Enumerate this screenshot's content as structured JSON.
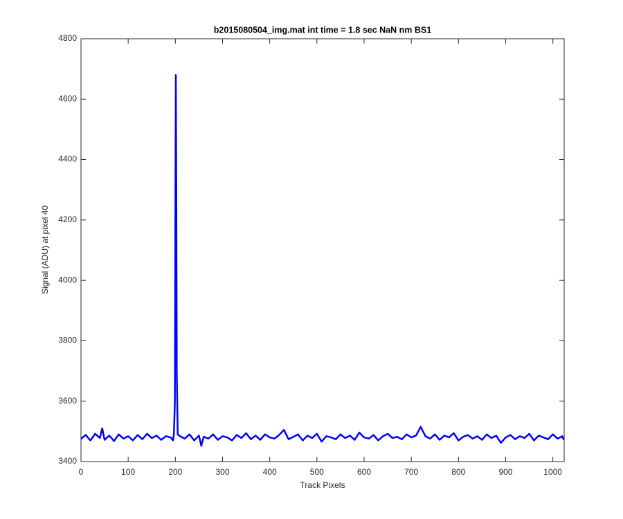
{
  "chart_data": {
    "type": "line",
    "title": "b2015080504_img.mat int time = 1.8 sec  NaN nm BS1",
    "x_label": "Track Pixels",
    "y_label": "Signal (ADU) at pixel 40",
    "xlim": [
      0,
      1024
    ],
    "ylim": [
      3400,
      4800
    ],
    "xticks": [
      0,
      100,
      200,
      300,
      400,
      500,
      600,
      700,
      800,
      900,
      1000
    ],
    "yticks": [
      3400,
      3600,
      3800,
      4000,
      4200,
      4400,
      4600,
      4800
    ],
    "grid": false,
    "series": [
      {
        "name": "signal",
        "color": "#0000ff",
        "x": [
          0,
          10,
          20,
          30,
          40,
          45,
          50,
          60,
          70,
          80,
          90,
          100,
          110,
          120,
          130,
          140,
          150,
          160,
          170,
          180,
          190,
          195,
          197,
          199,
          200,
          201,
          202,
          203,
          205,
          210,
          220,
          230,
          240,
          250,
          255,
          260,
          270,
          280,
          290,
          300,
          310,
          320,
          330,
          340,
          350,
          360,
          370,
          380,
          390,
          400,
          410,
          420,
          430,
          440,
          450,
          460,
          470,
          480,
          490,
          500,
          510,
          520,
          530,
          540,
          550,
          560,
          570,
          580,
          590,
          600,
          610,
          620,
          630,
          640,
          650,
          660,
          670,
          680,
          690,
          700,
          710,
          720,
          730,
          740,
          750,
          760,
          770,
          780,
          790,
          800,
          810,
          820,
          830,
          840,
          850,
          860,
          870,
          880,
          890,
          900,
          910,
          920,
          930,
          940,
          950,
          960,
          970,
          980,
          990,
          1000,
          1010,
          1020,
          1023
        ],
        "values": [
          3475,
          3488,
          3470,
          3492,
          3478,
          3510,
          3472,
          3486,
          3468,
          3490,
          3476,
          3484,
          3470,
          3488,
          3474,
          3492,
          3478,
          3486,
          3472,
          3484,
          3480,
          3470,
          3492,
          3600,
          4200,
          4680,
          4300,
          3700,
          3490,
          3484,
          3476,
          3490,
          3470,
          3486,
          3452,
          3482,
          3476,
          3490,
          3472,
          3484,
          3480,
          3470,
          3488,
          3478,
          3494,
          3474,
          3486,
          3472,
          3490,
          3480,
          3476,
          3488,
          3505,
          3474,
          3482,
          3490,
          3470,
          3486,
          3478,
          3492,
          3466,
          3484,
          3480,
          3474,
          3490,
          3478,
          3486,
          3472,
          3496,
          3480,
          3476,
          3488,
          3470,
          3484,
          3492,
          3478,
          3482,
          3474,
          3490,
          3480,
          3486,
          3515,
          3484,
          3476,
          3490,
          3472,
          3486,
          3480,
          3494,
          3470,
          3482,
          3488,
          3476,
          3484,
          3472,
          3490,
          3478,
          3486,
          3462,
          3480,
          3488,
          3474,
          3484,
          3478,
          3492,
          3470,
          3486,
          3480,
          3474,
          3490,
          3476,
          3484,
          3472
        ]
      }
    ]
  }
}
